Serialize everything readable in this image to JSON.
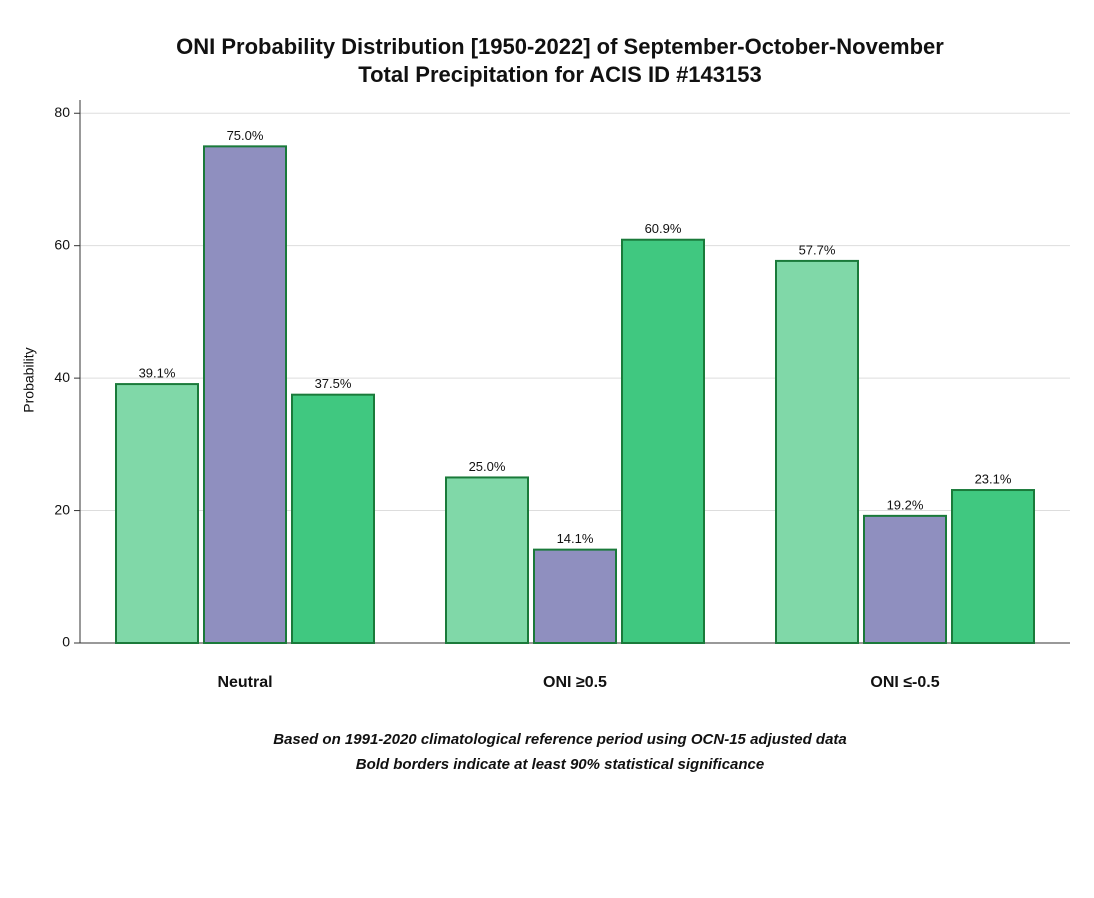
{
  "chart_data": {
    "type": "bar",
    "title": "ONI Probability Distribution [1950-2022] of September-October-November",
    "subtitle": "Total Precipitation  for ACIS ID #143153",
    "y_label": "Probability",
    "categories": [
      "Neutral",
      "ONI ≥0.5",
      "ONI ≤-0.5"
    ],
    "series": [
      {
        "color": "#80d8a8",
        "values": [
          39.1,
          25.0,
          57.7
        ],
        "value_labels": [
          "39.1%",
          "25.0%",
          "57.7%"
        ]
      },
      {
        "color": "#8f8fbf",
        "values": [
          75.0,
          14.1,
          19.2
        ],
        "value_labels": [
          "75.0%",
          "14.1%",
          "19.2%"
        ]
      },
      {
        "color": "#40c880",
        "values": [
          37.5,
          60.9,
          23.1
        ],
        "value_labels": [
          "37.5%",
          "60.9%",
          "23.1%"
        ]
      }
    ],
    "ylim": [
      0,
      82
    ],
    "yticks": [
      0,
      20,
      40,
      60,
      80
    ],
    "notes": [
      "Based on 1991-2020 climatological reference period using OCN-15 adjusted data",
      "Bold borders indicate at least 90% statistical significance"
    ]
  }
}
